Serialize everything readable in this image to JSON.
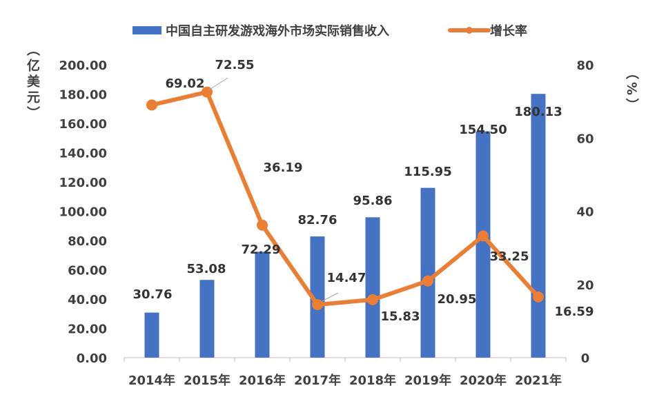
{
  "chart_data": {
    "type": "bar+line",
    "categories": [
      "2014年",
      "2015年",
      "2016年",
      "2017年",
      "2018年",
      "2019年",
      "2020年",
      "2021年"
    ],
    "series": [
      {
        "name": "中国自主研发游戏海外市场实际销售收入",
        "type": "bar",
        "axis": "left",
        "color": "#4472C4",
        "values": [
          30.76,
          53.08,
          72.29,
          82.76,
          95.86,
          115.95,
          154.5,
          180.13
        ],
        "labels": [
          "30.76",
          "53.08",
          "72.29",
          "82.76",
          "95.86",
          "115.95",
          "154.50",
          "180.13"
        ]
      },
      {
        "name": "增长率",
        "type": "line",
        "axis": "right",
        "color": "#ED7D31",
        "values": [
          69.02,
          72.55,
          36.19,
          14.47,
          15.83,
          20.95,
          33.25,
          16.59
        ],
        "labels": [
          "69.02",
          "72.55",
          "36.19",
          "14.47",
          "15.83",
          "20.95",
          "33.25",
          "16.59"
        ]
      }
    ],
    "ylabel_left": "（亿美元）",
    "ylabel_right": "（%）",
    "ylim_left": [
      0,
      200
    ],
    "yticks_left": [
      "0.00",
      "20.00",
      "40.00",
      "60.00",
      "80.00",
      "100.00",
      "120.00",
      "140.00",
      "160.00",
      "180.00",
      "200.00"
    ],
    "ylim_right": [
      0,
      80
    ],
    "yticks_right": [
      "0",
      "20",
      "40",
      "60",
      "80"
    ],
    "grid": false,
    "legend_placement": "top"
  }
}
